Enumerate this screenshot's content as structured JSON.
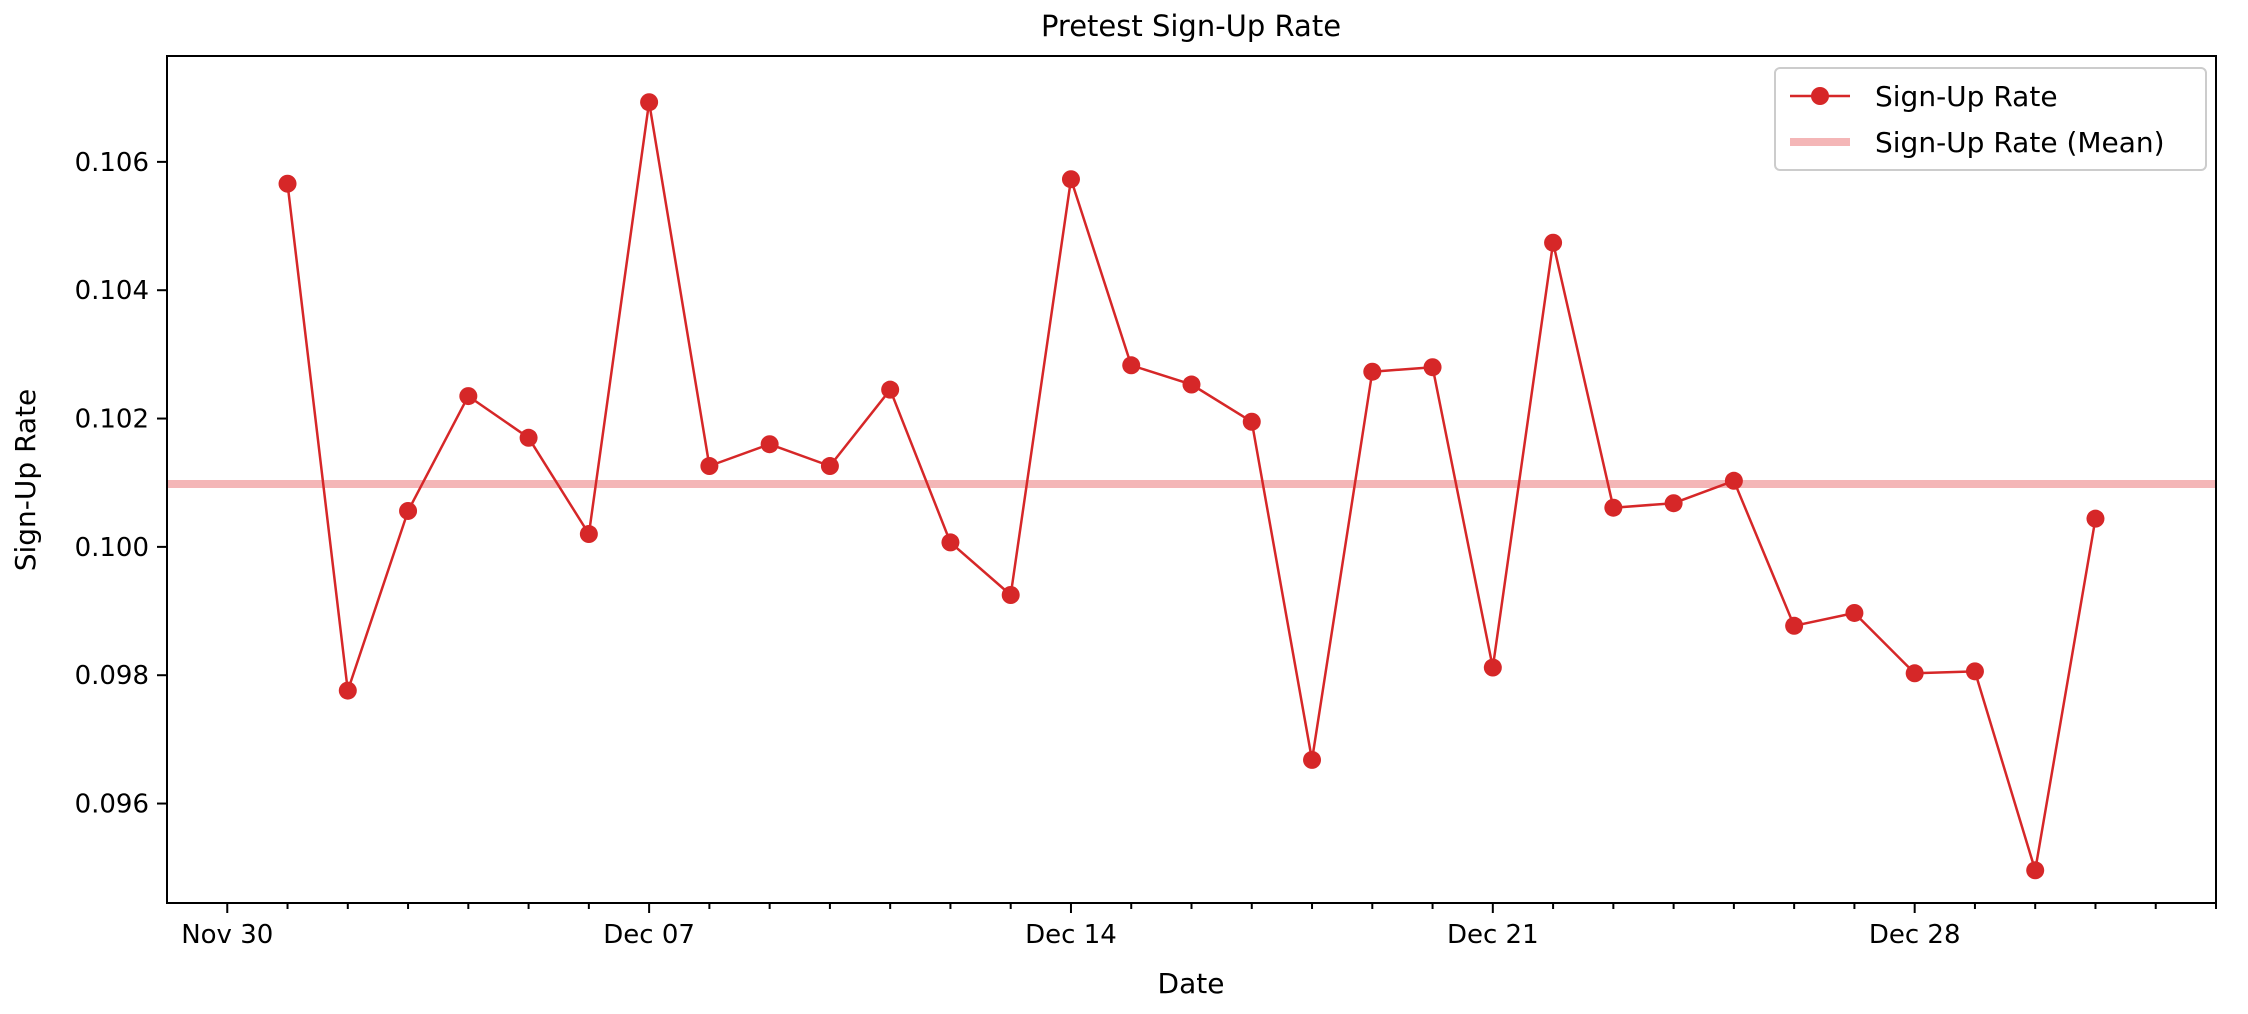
{
  "chart_data": {
    "type": "line",
    "title": "Pretest Sign-Up Rate",
    "xlabel": "Date",
    "ylabel": "Sign-Up Rate",
    "x_tick_labels": [
      "Nov 30",
      "Dec 07",
      "Dec 14",
      "Dec 21",
      "Dec 28"
    ],
    "y_tick_labels": [
      "0.096",
      "0.098",
      "0.100",
      "0.102",
      "0.104",
      "0.106"
    ],
    "y_ticks": [
      0.096,
      0.098,
      0.1,
      0.102,
      0.104,
      0.106
    ],
    "ylim": [
      0.09445,
      0.10765
    ],
    "xlim": [
      "2022-11-29",
      "2023-01-02"
    ],
    "grid": false,
    "legend_position": "top-right",
    "x": [
      "2022-12-01",
      "2022-12-02",
      "2022-12-03",
      "2022-12-04",
      "2022-12-05",
      "2022-12-06",
      "2022-12-07",
      "2022-12-08",
      "2022-12-09",
      "2022-12-10",
      "2022-12-11",
      "2022-12-12",
      "2022-12-13",
      "2022-12-14",
      "2022-12-15",
      "2022-12-16",
      "2022-12-17",
      "2022-12-18",
      "2022-12-19",
      "2022-12-20",
      "2022-12-21",
      "2022-12-22",
      "2022-12-23",
      "2022-12-24",
      "2022-12-25",
      "2022-12-26",
      "2022-12-27",
      "2022-12-28",
      "2022-12-29",
      "2022-12-30",
      "2022-12-31"
    ],
    "series": [
      {
        "name": "Sign-Up Rate",
        "color": "#d62728",
        "marker": "circle",
        "values": [
          0.10566,
          0.09776,
          0.10056,
          0.10235,
          0.1017,
          0.1002,
          0.10693,
          0.10126,
          0.1016,
          0.10126,
          0.10245,
          0.10007,
          0.09925,
          0.10573,
          0.10283,
          0.10253,
          0.10195,
          0.09668,
          0.10273,
          0.1028,
          0.09812,
          0.10474,
          0.10061,
          0.10068,
          0.10103,
          0.09877,
          0.09897,
          0.09803,
          0.09806,
          0.09496,
          0.10044
        ]
      },
      {
        "name": "Sign-Up Rate (Mean)",
        "color": "#f4b6b7",
        "type": "hline",
        "value": 0.10098
      }
    ]
  }
}
